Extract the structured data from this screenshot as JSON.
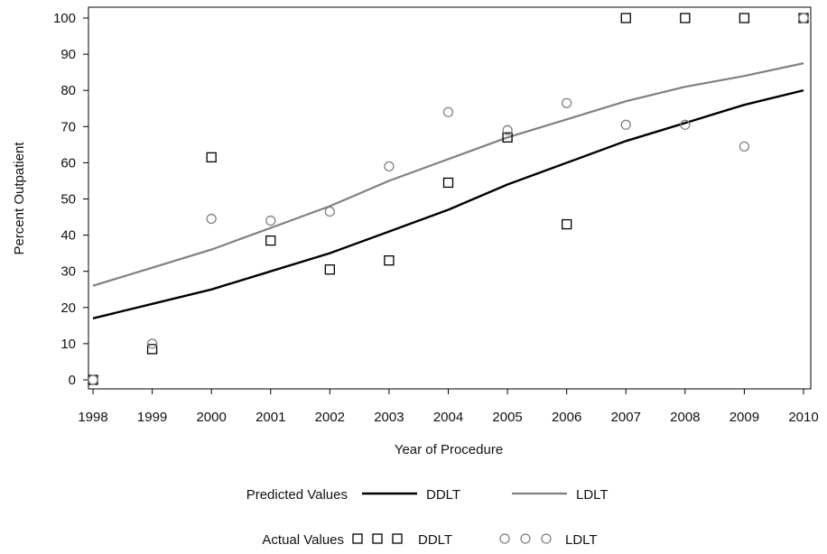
{
  "chart_data": {
    "type": "scatter",
    "xlabel": "Year of Procedure",
    "ylabel": "Percent Outpatient",
    "xlim": [
      1998,
      2010
    ],
    "ylim": [
      0,
      100
    ],
    "x_ticks": [
      1998,
      1999,
      2000,
      2001,
      2002,
      2003,
      2004,
      2005,
      2006,
      2007,
      2008,
      2009,
      2010
    ],
    "y_ticks": [
      0,
      10,
      20,
      30,
      40,
      50,
      60,
      70,
      80,
      90,
      100
    ],
    "grid": false,
    "legend_placement": "bottom",
    "predicted": [
      {
        "name": "DDLT",
        "color": "#000000",
        "x": [
          1998,
          1999,
          2000,
          2001,
          2002,
          2003,
          2004,
          2005,
          2006,
          2007,
          2008,
          2009,
          2010
        ],
        "y": [
          17,
          21,
          25,
          30,
          35,
          41,
          47,
          54,
          60,
          66,
          71,
          76,
          80
        ]
      },
      {
        "name": "LDLT",
        "color": "#808080",
        "x": [
          1998,
          1999,
          2000,
          2001,
          2002,
          2003,
          2004,
          2005,
          2006,
          2007,
          2008,
          2009,
          2010
        ],
        "y": [
          26,
          31,
          36,
          42,
          48,
          55,
          61,
          67,
          72,
          77,
          81,
          84,
          87.5
        ]
      }
    ],
    "actual": [
      {
        "name": "DDLT",
        "marker": "square",
        "x": [
          1998,
          1999,
          2000,
          2001,
          2002,
          2003,
          2004,
          2005,
          2006,
          2007,
          2008,
          2009,
          2010
        ],
        "y": [
          0,
          8.5,
          61.5,
          38.5,
          30.5,
          33,
          54.5,
          67,
          43,
          100,
          100,
          100,
          100
        ]
      },
      {
        "name": "LDLT",
        "marker": "circle",
        "x": [
          1998,
          1999,
          2000,
          2001,
          2002,
          2003,
          2004,
          2005,
          2006,
          2007,
          2008,
          2009,
          2010
        ],
        "y": [
          0,
          10,
          44.5,
          44,
          46.5,
          59,
          74,
          69,
          76.5,
          70.5,
          70.5,
          64.5,
          100
        ]
      }
    ]
  },
  "legend": {
    "predicted_label": "Predicted Values",
    "actual_label": "Actual Values",
    "ddlt": "DDLT",
    "ldlt": "LDLT"
  }
}
